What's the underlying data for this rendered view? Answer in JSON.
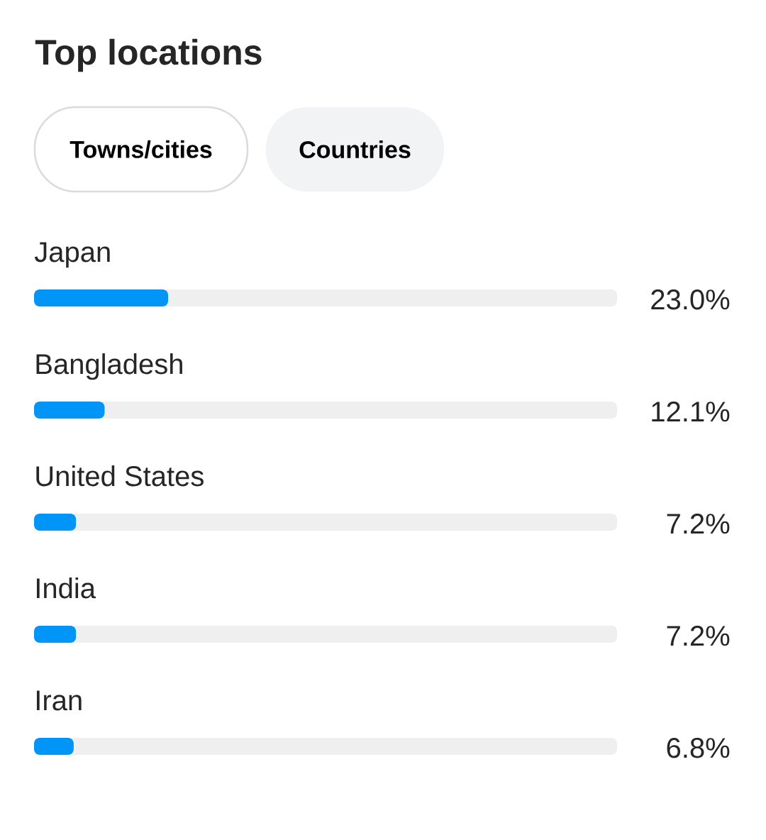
{
  "chart_data": {
    "type": "bar",
    "title": "Top locations",
    "annotations": [
      "Towns/cities",
      "Countries"
    ],
    "orientation": "horizontal",
    "categories": [
      "Japan",
      "Bangladesh",
      "United States",
      "India",
      "Iran"
    ],
    "values": [
      23.0,
      12.1,
      7.2,
      7.2,
      6.8
    ],
    "value_labels": [
      "23.0%",
      "12.1%",
      "7.2%",
      "7.2%",
      "6.8%"
    ],
    "color": "#0095f6",
    "xlim": [
      0,
      100
    ],
    "tick_labels": "y"
  }
}
